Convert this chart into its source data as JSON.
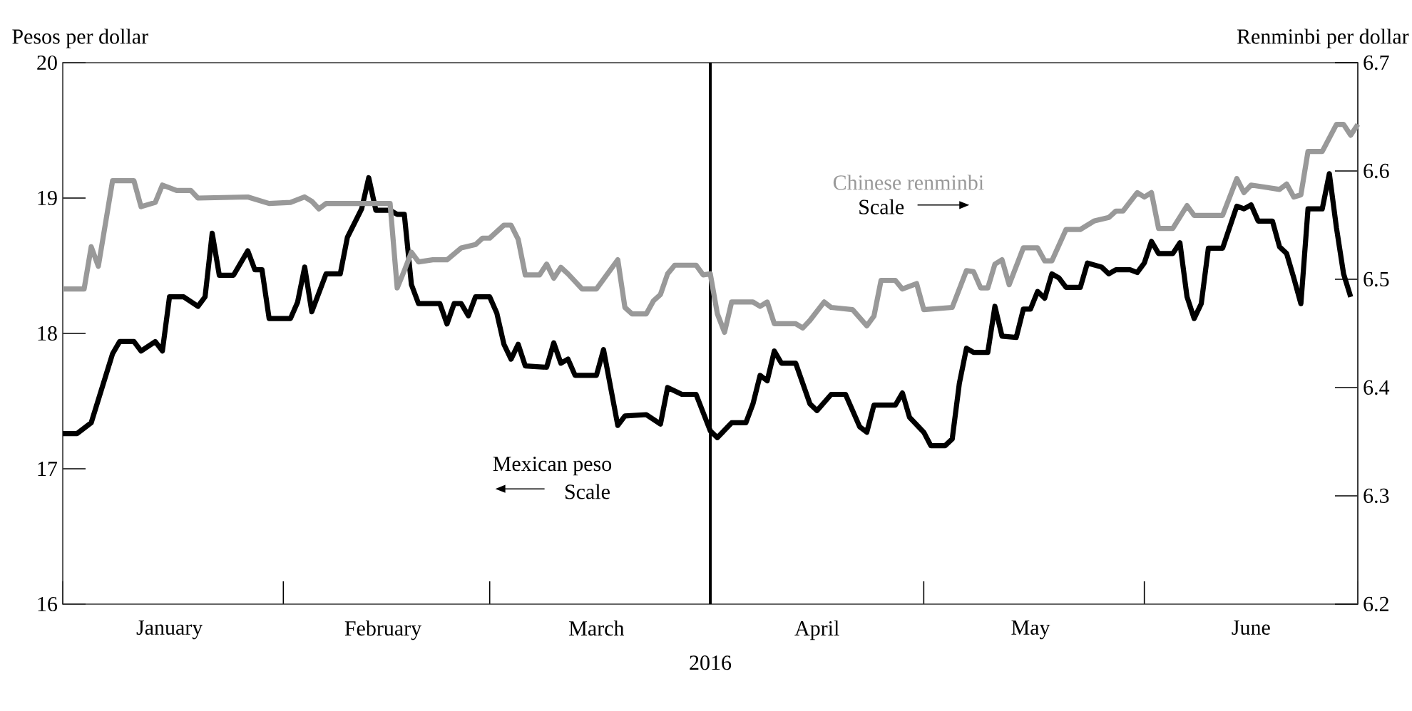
{
  "chart_data": {
    "type": "line",
    "xlabel": "2016",
    "ylabel": "Pesos per dollar",
    "y2label": "Renminbi per dollar",
    "xlim": [
      "2016-01-01",
      "2016-07-01"
    ],
    "xticks": [
      {
        "value": "2016-01-01",
        "label": null
      },
      {
        "value": "2016-01-16",
        "label": "January"
      },
      {
        "value": "2016-02-01",
        "label": null
      },
      {
        "value": "2016-02-15",
        "label": "February"
      },
      {
        "value": "2016-03-01",
        "label": null
      },
      {
        "value": "2016-03-16",
        "label": "March"
      },
      {
        "value": "2016-04-01",
        "label": null
      },
      {
        "value": "2016-04-16",
        "label": "April"
      },
      {
        "value": "2016-05-01",
        "label": null
      },
      {
        "value": "2016-05-16",
        "label": "May"
      },
      {
        "value": "2016-06-01",
        "label": null
      },
      {
        "value": "2016-06-16",
        "label": "June"
      },
      {
        "value": "2016-07-01",
        "label": null
      }
    ],
    "ylim": [
      16,
      20
    ],
    "yticks": [
      16,
      17,
      18,
      19,
      20
    ],
    "y2lim": [
      6.2,
      6.7
    ],
    "y2ticks": [
      6.2,
      6.3,
      6.4,
      6.5,
      6.6,
      6.7
    ],
    "marker": "none",
    "line_style": "solid",
    "ref_lines": [
      {
        "axis": "x",
        "value": "2016-04-01"
      }
    ],
    "annotations": [
      "Scale",
      "Scale"
    ],
    "series": [
      {
        "name": "Mexican peso",
        "color": "#000000",
        "x": [
          "2016-01-01",
          "2016-01-03",
          "2016-01-05",
          "2016-01-08",
          "2016-01-09",
          "2016-01-11",
          "2016-01-12",
          "2016-01-14",
          "2016-01-15",
          "2016-01-16",
          "2016-01-18",
          "2016-01-20",
          "2016-01-21",
          "2016-01-22",
          "2016-01-23",
          "2016-01-25",
          "2016-01-27",
          "2016-01-28",
          "2016-01-29",
          "2016-01-30",
          "2016-02-02",
          "2016-02-03",
          "2016-02-04",
          "2016-02-05",
          "2016-02-07",
          "2016-02-09",
          "2016-02-10",
          "2016-02-12",
          "2016-02-13",
          "2016-02-14",
          "2016-02-16",
          "2016-02-17",
          "2016-02-18",
          "2016-02-19",
          "2016-02-20",
          "2016-02-23",
          "2016-02-24",
          "2016-02-25",
          "2016-02-26",
          "2016-02-27",
          "2016-02-28",
          "2016-03-01",
          "2016-03-02",
          "2016-03-03",
          "2016-03-04",
          "2016-03-05",
          "2016-03-06",
          "2016-03-09",
          "2016-03-10",
          "2016-03-11",
          "2016-03-12",
          "2016-03-13",
          "2016-03-16",
          "2016-03-17",
          "2016-03-19",
          "2016-03-20",
          "2016-03-23",
          "2016-03-25",
          "2016-03-26",
          "2016-03-28",
          "2016-03-30",
          "2016-04-01",
          "2016-04-02",
          "2016-04-04",
          "2016-04-06",
          "2016-04-07",
          "2016-04-08",
          "2016-04-09",
          "2016-04-10",
          "2016-04-11",
          "2016-04-13",
          "2016-04-15",
          "2016-04-16",
          "2016-04-18",
          "2016-04-20",
          "2016-04-22",
          "2016-04-23",
          "2016-04-24",
          "2016-04-27",
          "2016-04-28",
          "2016-04-29",
          "2016-05-01",
          "2016-05-02",
          "2016-05-04",
          "2016-05-05",
          "2016-05-06",
          "2016-05-07",
          "2016-05-08",
          "2016-05-10",
          "2016-05-11",
          "2016-05-12",
          "2016-05-14",
          "2016-05-15",
          "2016-05-16",
          "2016-05-17",
          "2016-05-18",
          "2016-05-19",
          "2016-05-20",
          "2016-05-21",
          "2016-05-23",
          "2016-05-24",
          "2016-05-26",
          "2016-05-27",
          "2016-05-28",
          "2016-05-30",
          "2016-05-31",
          "2016-06-01",
          "2016-06-02",
          "2016-06-03",
          "2016-06-05",
          "2016-06-06",
          "2016-06-07",
          "2016-06-08",
          "2016-06-09",
          "2016-06-10",
          "2016-06-12",
          "2016-06-14",
          "2016-06-15",
          "2016-06-16",
          "2016-06-17",
          "2016-06-19",
          "2016-06-20",
          "2016-06-21",
          "2016-06-22",
          "2016-06-23",
          "2016-06-24",
          "2016-06-26",
          "2016-06-27",
          "2016-06-28",
          "2016-06-29",
          "2016-06-30"
        ],
        "values": [
          17.26,
          17.26,
          17.34,
          17.85,
          17.94,
          17.94,
          17.87,
          17.94,
          17.87,
          18.27,
          18.27,
          18.2,
          18.27,
          18.74,
          18.43,
          18.43,
          18.61,
          18.47,
          18.47,
          18.11,
          18.11,
          18.23,
          18.49,
          18.16,
          18.44,
          18.44,
          18.71,
          18.92,
          19.15,
          18.91,
          18.91,
          18.88,
          18.88,
          18.36,
          18.22,
          18.22,
          18.07,
          18.22,
          18.22,
          18.13,
          18.27,
          18.27,
          18.15,
          17.92,
          17.81,
          17.92,
          17.76,
          17.75,
          17.93,
          17.78,
          17.81,
          17.69,
          17.69,
          17.88,
          17.32,
          17.39,
          17.4,
          17.33,
          17.6,
          17.55,
          17.55,
          17.28,
          17.23,
          17.34,
          17.34,
          17.48,
          17.69,
          17.65,
          17.87,
          17.78,
          17.78,
          17.48,
          17.43,
          17.55,
          17.55,
          17.31,
          17.27,
          17.47,
          17.47,
          17.56,
          17.38,
          17.27,
          17.17,
          17.17,
          17.22,
          17.63,
          17.89,
          17.86,
          17.86,
          18.2,
          17.98,
          17.97,
          18.18,
          18.18,
          18.31,
          18.26,
          18.44,
          18.41,
          18.34,
          18.34,
          18.52,
          18.49,
          18.44,
          18.47,
          18.47,
          18.45,
          18.52,
          18.68,
          18.59,
          18.59,
          18.67,
          18.27,
          18.11,
          18.22,
          18.63,
          18.63,
          18.94,
          18.92,
          18.95,
          18.83,
          18.83,
          18.64,
          18.59,
          18.41,
          18.22,
          18.92,
          18.92,
          19.18,
          18.78,
          18.44,
          18.27
        ]
      },
      {
        "name": "Chinese renminbi",
        "color": "#999999",
        "axis": "y2",
        "x": [
          "2016-01-01",
          "2016-01-04",
          "2016-01-05",
          "2016-01-06",
          "2016-01-08",
          "2016-01-11",
          "2016-01-12",
          "2016-01-14",
          "2016-01-15",
          "2016-01-17",
          "2016-01-19",
          "2016-01-20",
          "2016-01-27",
          "2016-01-30",
          "2016-02-02",
          "2016-02-04",
          "2016-02-05",
          "2016-02-06",
          "2016-02-07",
          "2016-02-16",
          "2016-02-17",
          "2016-02-18",
          "2016-02-19",
          "2016-02-20",
          "2016-02-22",
          "2016-02-24",
          "2016-02-26",
          "2016-02-28",
          "2016-02-29",
          "2016-03-01",
          "2016-03-03",
          "2016-03-04",
          "2016-03-05",
          "2016-03-06",
          "2016-03-08",
          "2016-03-09",
          "2016-03-10",
          "2016-03-11",
          "2016-03-12",
          "2016-03-14",
          "2016-03-16",
          "2016-03-19",
          "2016-03-20",
          "2016-03-21",
          "2016-03-23",
          "2016-03-24",
          "2016-03-25",
          "2016-03-26",
          "2016-03-27",
          "2016-03-30",
          "2016-03-31",
          "2016-04-01",
          "2016-04-02",
          "2016-04-03",
          "2016-04-04",
          "2016-04-07",
          "2016-04-08",
          "2016-04-09",
          "2016-04-10",
          "2016-04-13",
          "2016-04-14",
          "2016-04-15",
          "2016-04-17",
          "2016-04-18",
          "2016-04-21",
          "2016-04-23",
          "2016-04-24",
          "2016-04-25",
          "2016-04-27",
          "2016-04-28",
          "2016-04-30",
          "2016-05-01",
          "2016-05-05",
          "2016-05-07",
          "2016-05-08",
          "2016-05-09",
          "2016-05-10",
          "2016-05-11",
          "2016-05-12",
          "2016-05-13",
          "2016-05-15",
          "2016-05-17",
          "2016-05-18",
          "2016-05-19",
          "2016-05-21",
          "2016-05-23",
          "2016-05-25",
          "2016-05-27",
          "2016-05-28",
          "2016-05-29",
          "2016-05-31",
          "2016-06-01",
          "2016-06-02",
          "2016-06-03",
          "2016-06-05",
          "2016-06-07",
          "2016-06-08",
          "2016-06-12",
          "2016-06-14",
          "2016-06-15",
          "2016-06-16",
          "2016-06-20",
          "2016-06-21",
          "2016-06-22",
          "2016-06-23",
          "2016-06-24",
          "2016-06-26",
          "2016-06-28",
          "2016-06-29",
          "2016-06-30",
          "2016-07-01"
        ],
        "values": [
          6.491,
          6.491,
          6.53,
          6.512,
          6.591,
          6.591,
          6.567,
          6.571,
          6.587,
          6.582,
          6.582,
          6.575,
          6.576,
          6.57,
          6.571,
          6.576,
          6.572,
          6.565,
          6.57,
          6.57,
          6.492,
          6.508,
          6.525,
          6.516,
          6.518,
          6.518,
          6.529,
          6.532,
          6.538,
          6.538,
          6.55,
          6.55,
          6.537,
          6.504,
          6.504,
          6.514,
          6.501,
          6.511,
          6.505,
          6.491,
          6.491,
          6.518,
          6.474,
          6.468,
          6.468,
          6.48,
          6.486,
          6.505,
          6.513,
          6.513,
          6.504,
          6.505,
          6.468,
          6.451,
          6.479,
          6.479,
          6.475,
          6.479,
          6.459,
          6.459,
          6.455,
          6.462,
          6.479,
          6.474,
          6.472,
          6.457,
          6.466,
          6.499,
          6.499,
          6.491,
          6.496,
          6.472,
          6.474,
          6.508,
          6.507,
          6.492,
          6.492,
          6.514,
          6.518,
          6.495,
          6.529,
          6.529,
          6.517,
          6.517,
          6.546,
          6.546,
          6.554,
          6.557,
          6.563,
          6.563,
          6.58,
          6.576,
          6.58,
          6.547,
          6.547,
          6.568,
          6.559,
          6.559,
          6.593,
          6.58,
          6.587,
          6.583,
          6.588,
          6.576,
          6.578,
          6.618,
          6.618,
          6.643,
          6.643,
          6.633,
          6.643
        ]
      }
    ]
  }
}
